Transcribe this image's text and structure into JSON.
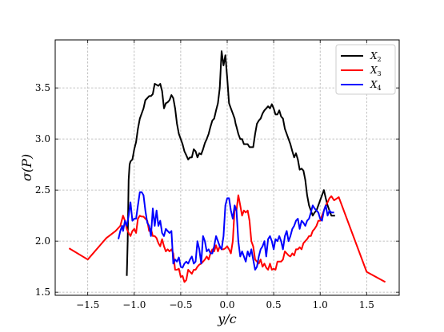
{
  "chart_data": {
    "type": "line",
    "xlabel_base": "y/c",
    "ylabel_base": "σ(P)",
    "xlim": [
      -1.85,
      1.85
    ],
    "ylim": [
      1.47,
      3.97
    ],
    "xticks": [
      -1.5,
      -1.0,
      -0.5,
      0.0,
      0.5,
      1.0,
      1.5
    ],
    "xtick_labels": [
      "−1.5",
      "−1.0",
      "−0.5",
      "0.0",
      "0.5",
      "1.0",
      "1.5"
    ],
    "yticks": [
      1.5,
      2.0,
      2.5,
      3.0,
      3.5
    ],
    "ytick_labels": [
      "1.5",
      "2.0",
      "2.5",
      "3.0",
      "3.5"
    ],
    "grid": true,
    "legend_position": "top-right",
    "series": [
      {
        "name": "X",
        "subscript": "2",
        "color": "#000000",
        "x": [
          -1.08,
          -1.07,
          -1.06,
          -1.05,
          -1.04,
          -1.02,
          -1.0,
          -0.98,
          -0.96,
          -0.94,
          -0.92,
          -0.9,
          -0.88,
          -0.86,
          -0.84,
          -0.82,
          -0.8,
          -0.78,
          -0.76,
          -0.74,
          -0.72,
          -0.7,
          -0.68,
          -0.66,
          -0.64,
          -0.62,
          -0.6,
          -0.58,
          -0.56,
          -0.54,
          -0.52,
          -0.5,
          -0.48,
          -0.46,
          -0.44,
          -0.42,
          -0.4,
          -0.38,
          -0.36,
          -0.34,
          -0.32,
          -0.3,
          -0.28,
          -0.26,
          -0.24,
          -0.22,
          -0.2,
          -0.18,
          -0.16,
          -0.14,
          -0.12,
          -0.1,
          -0.08,
          -0.06,
          -0.04,
          -0.02,
          0.0,
          0.02,
          0.04,
          0.06,
          0.08,
          0.09,
          0.1,
          0.12,
          0.14,
          0.16,
          0.18,
          0.2,
          0.22,
          0.24,
          0.26,
          0.28,
          0.3,
          0.32,
          0.34,
          0.36,
          0.38,
          0.4,
          0.42,
          0.44,
          0.46,
          0.48,
          0.5,
          0.52,
          0.54,
          0.56,
          0.58,
          0.6,
          0.62,
          0.64,
          0.66,
          0.68,
          0.7,
          0.72,
          0.74,
          0.76,
          0.78,
          0.8,
          0.82,
          0.84,
          0.86,
          0.88,
          0.9,
          0.92,
          0.94,
          0.96,
          0.98,
          1.0,
          1.02,
          1.04,
          1.06,
          1.08,
          1.1,
          1.12,
          1.14,
          1.16
        ],
        "y": [
          1.66,
          2.0,
          2.6,
          2.75,
          2.78,
          2.8,
          2.9,
          2.97,
          3.1,
          3.2,
          3.25,
          3.3,
          3.38,
          3.4,
          3.42,
          3.42,
          3.44,
          3.54,
          3.53,
          3.52,
          3.54,
          3.47,
          3.3,
          3.35,
          3.36,
          3.38,
          3.43,
          3.4,
          3.3,
          3.15,
          3.05,
          3.0,
          2.95,
          2.88,
          2.84,
          2.8,
          2.82,
          2.82,
          2.9,
          2.88,
          2.82,
          2.86,
          2.85,
          2.9,
          2.96,
          3.0,
          3.05,
          3.12,
          3.18,
          3.2,
          3.28,
          3.35,
          3.5,
          3.86,
          3.72,
          3.82,
          3.6,
          3.35,
          3.3,
          3.25,
          3.2,
          3.15,
          3.12,
          3.05,
          3.0,
          3.0,
          2.95,
          2.95,
          2.95,
          2.92,
          2.92,
          2.92,
          3.05,
          3.15,
          3.18,
          3.2,
          3.25,
          3.28,
          3.3,
          3.32,
          3.3,
          3.34,
          3.3,
          3.24,
          3.24,
          3.28,
          3.22,
          3.2,
          3.1,
          3.05,
          3.0,
          2.95,
          2.88,
          2.82,
          2.86,
          2.8,
          2.7,
          2.71,
          2.69,
          2.6,
          2.45,
          2.35,
          2.3,
          2.25,
          2.28,
          2.3,
          2.35,
          2.4,
          2.45,
          2.5,
          2.42,
          2.35,
          2.3,
          2.25,
          2.25,
          2.25
        ]
      },
      {
        "name": "X",
        "subscript": "3",
        "color": "#ff0000",
        "x": [
          -1.7,
          -1.5,
          -1.3,
          -1.2,
          -1.15,
          -1.12,
          -1.1,
          -1.08,
          -1.06,
          -1.04,
          -1.02,
          -1.0,
          -0.98,
          -0.96,
          -0.94,
          -0.92,
          -0.9,
          -0.88,
          -0.86,
          -0.84,
          -0.82,
          -0.8,
          -0.78,
          -0.76,
          -0.74,
          -0.72,
          -0.7,
          -0.68,
          -0.66,
          -0.64,
          -0.62,
          -0.6,
          -0.58,
          -0.56,
          -0.54,
          -0.52,
          -0.5,
          -0.48,
          -0.46,
          -0.44,
          -0.42,
          -0.4,
          -0.38,
          -0.36,
          -0.34,
          -0.32,
          -0.3,
          -0.28,
          -0.26,
          -0.24,
          -0.22,
          -0.2,
          -0.18,
          -0.16,
          -0.14,
          -0.12,
          -0.1,
          -0.08,
          -0.06,
          -0.04,
          -0.02,
          0.0,
          0.02,
          0.04,
          0.06,
          0.08,
          0.1,
          0.12,
          0.14,
          0.16,
          0.18,
          0.2,
          0.22,
          0.24,
          0.26,
          0.28,
          0.3,
          0.32,
          0.34,
          0.36,
          0.38,
          0.4,
          0.42,
          0.44,
          0.46,
          0.48,
          0.5,
          0.52,
          0.54,
          0.56,
          0.58,
          0.6,
          0.62,
          0.64,
          0.66,
          0.68,
          0.7,
          0.72,
          0.74,
          0.76,
          0.78,
          0.8,
          0.82,
          0.84,
          0.86,
          0.88,
          0.9,
          0.92,
          0.94,
          0.96,
          0.98,
          1.0,
          1.02,
          1.04,
          1.06,
          1.08,
          1.1,
          1.12,
          1.15,
          1.2,
          1.5,
          1.7
        ],
        "y": [
          1.93,
          1.82,
          2.03,
          2.1,
          2.15,
          2.25,
          2.2,
          2.12,
          2.08,
          2.05,
          2.1,
          2.12,
          2.08,
          2.22,
          2.25,
          2.24,
          2.24,
          2.22,
          2.2,
          2.1,
          2.12,
          2.05,
          2.05,
          2.03,
          1.98,
          1.95,
          2.02,
          1.95,
          1.9,
          1.92,
          1.9,
          1.92,
          1.88,
          1.72,
          1.72,
          1.73,
          1.65,
          1.66,
          1.6,
          1.62,
          1.72,
          1.7,
          1.68,
          1.72,
          1.72,
          1.75,
          1.77,
          1.78,
          1.8,
          1.82,
          1.85,
          1.82,
          1.88,
          1.92,
          1.9,
          1.96,
          1.9,
          1.95,
          1.92,
          1.92,
          1.93,
          1.95,
          1.92,
          1.88,
          2.0,
          2.32,
          2.3,
          2.45,
          2.35,
          2.25,
          2.3,
          2.28,
          2.3,
          2.2,
          2.0,
          1.95,
          1.82,
          1.8,
          1.78,
          1.82,
          1.75,
          1.78,
          1.74,
          1.72,
          1.78,
          1.72,
          1.73,
          1.72,
          1.8,
          1.8,
          1.8,
          1.82,
          1.9,
          1.88,
          1.86,
          1.85,
          1.88,
          1.86,
          1.92,
          1.92,
          1.94,
          1.92,
          1.98,
          2.0,
          2.02,
          2.05,
          2.05,
          2.1,
          2.12,
          2.15,
          2.2,
          2.2,
          2.25,
          2.3,
          2.35,
          2.38,
          2.42,
          2.44,
          2.4,
          2.43,
          1.7,
          1.6
        ]
      },
      {
        "name": "X",
        "subscript": "4",
        "color": "#0000ff",
        "x": [
          -1.17,
          -1.15,
          -1.13,
          -1.12,
          -1.1,
          -1.08,
          -1.06,
          -1.04,
          -1.02,
          -1.0,
          -0.98,
          -0.96,
          -0.94,
          -0.92,
          -0.9,
          -0.88,
          -0.86,
          -0.84,
          -0.82,
          -0.8,
          -0.78,
          -0.76,
          -0.74,
          -0.72,
          -0.7,
          -0.68,
          -0.66,
          -0.64,
          -0.62,
          -0.6,
          -0.58,
          -0.56,
          -0.54,
          -0.52,
          -0.5,
          -0.48,
          -0.46,
          -0.44,
          -0.42,
          -0.4,
          -0.38,
          -0.36,
          -0.34,
          -0.32,
          -0.3,
          -0.28,
          -0.26,
          -0.24,
          -0.22,
          -0.2,
          -0.18,
          -0.16,
          -0.14,
          -0.12,
          -0.1,
          -0.08,
          -0.06,
          -0.04,
          -0.02,
          0.0,
          0.02,
          0.04,
          0.06,
          0.08,
          0.1,
          0.12,
          0.14,
          0.16,
          0.18,
          0.2,
          0.22,
          0.24,
          0.26,
          0.28,
          0.3,
          0.32,
          0.34,
          0.36,
          0.38,
          0.4,
          0.42,
          0.44,
          0.46,
          0.48,
          0.5,
          0.52,
          0.54,
          0.56,
          0.58,
          0.6,
          0.62,
          0.64,
          0.66,
          0.68,
          0.7,
          0.72,
          0.74,
          0.76,
          0.78,
          0.8,
          0.82,
          0.84,
          0.86,
          0.88,
          0.9,
          0.92,
          0.94,
          0.96,
          0.98,
          1.0,
          1.02,
          1.04,
          1.06,
          1.08,
          1.1,
          1.12,
          1.15
        ],
        "y": [
          2.02,
          2.1,
          2.15,
          2.1,
          2.2,
          2.15,
          2.25,
          2.38,
          2.2,
          2.22,
          2.22,
          2.35,
          2.48,
          2.48,
          2.45,
          2.3,
          2.18,
          2.15,
          2.05,
          2.32,
          2.15,
          2.3,
          2.15,
          2.2,
          2.08,
          2.05,
          2.12,
          2.1,
          2.08,
          2.1,
          1.78,
          1.82,
          1.8,
          1.84,
          1.75,
          1.74,
          1.78,
          1.8,
          1.78,
          1.82,
          1.85,
          1.78,
          1.8,
          2.0,
          1.92,
          1.78,
          2.05,
          2.0,
          1.9,
          1.92,
          1.88,
          1.88,
          1.95,
          2.05,
          2.0,
          1.95,
          1.92,
          2.05,
          2.35,
          2.42,
          2.42,
          2.3,
          2.22,
          2.35,
          2.3,
          2.0,
          1.85,
          1.9,
          1.85,
          1.8,
          1.9,
          1.85,
          1.92,
          1.82,
          1.72,
          1.75,
          1.85,
          1.92,
          1.95,
          2.0,
          1.85,
          2.02,
          2.05,
          2.0,
          1.92,
          2.02,
          2.0,
          2.05,
          2.0,
          1.92,
          2.05,
          2.1,
          2.0,
          2.05,
          2.12,
          2.15,
          2.2,
          2.22,
          2.12,
          2.2,
          2.18,
          2.15,
          2.2,
          2.22,
          2.28,
          2.35,
          2.32,
          2.3,
          2.28,
          2.22,
          2.2,
          2.3,
          2.35,
          2.25,
          2.3,
          2.28,
          2.28
        ]
      }
    ]
  }
}
